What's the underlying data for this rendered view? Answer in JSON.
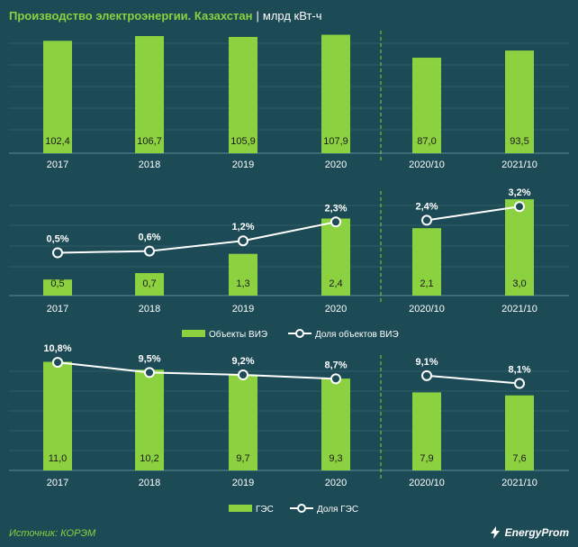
{
  "header": {
    "title": "Производство электроэнергии. Казахстан",
    "separator": "|",
    "unit": "млрд кВт-ч"
  },
  "footer": {
    "source": "Источник: КОРЭМ",
    "logo": "EnergyProm"
  },
  "colors": {
    "bar": "#8cd13f",
    "line": "#ffffff",
    "marker_fill": "#1c4a55",
    "grid": "#2e5c66",
    "divider": "#8cd13f"
  },
  "chart_data": [
    {
      "type": "bar",
      "categories": [
        "2017",
        "2018",
        "2019",
        "2020",
        "2020/10",
        "2021/10"
      ],
      "series": [
        {
          "values": [
            102.4,
            106.7,
            105.9,
            107.9,
            87.0,
            93.5
          ],
          "labels": [
            "102,4",
            "106,7",
            "105,9",
            "107,9",
            "87,0",
            "93,5"
          ]
        }
      ],
      "ylim": [
        0,
        110
      ],
      "grid": true
    },
    {
      "type": "bar",
      "categories": [
        "2017",
        "2018",
        "2019",
        "2020",
        "2020/10",
        "2021/10"
      ],
      "series": [
        {
          "name": "Объекты ВИЭ",
          "type": "bar",
          "values": [
            0.5,
            0.7,
            1.3,
            2.4,
            2.1,
            3.0
          ],
          "labels": [
            "0,5",
            "0,7",
            "1,3",
            "2,4",
            "2,1",
            "3,0"
          ]
        },
        {
          "name": "Доля объектов ВИЭ",
          "type": "line",
          "values": [
            0.5,
            0.6,
            1.2,
            2.3,
            2.4,
            3.2
          ],
          "labels": [
            "0,5%",
            "0,6%",
            "1,2%",
            "2,3%",
            "2,4%",
            "3,2%"
          ]
        }
      ],
      "ylim": [
        0,
        3.2
      ],
      "line_ylim": [
        -2.0,
        4.0
      ],
      "grid": true,
      "legend": "bottom"
    },
    {
      "type": "bar",
      "categories": [
        "2017",
        "2018",
        "2019",
        "2020",
        "2020/10",
        "2021/10"
      ],
      "series": [
        {
          "name": "ГЭС",
          "type": "bar",
          "values": [
            11.0,
            10.2,
            9.7,
            9.3,
            7.9,
            7.6
          ],
          "labels": [
            "11,0",
            "10,2",
            "9,7",
            "9,3",
            "7,9",
            "7,6"
          ]
        },
        {
          "name": "Доля ГЭС",
          "type": "line",
          "values": [
            10.8,
            9.5,
            9.2,
            8.7,
            9.1,
            8.1
          ],
          "labels": [
            "10,8%",
            "9,5%",
            "9,2%",
            "8,7%",
            "9,1%",
            "8,1%"
          ]
        }
      ],
      "ylim": [
        0,
        11.5
      ],
      "line_ylim": [
        -3.0,
        11.5
      ],
      "grid": true,
      "legend": "bottom"
    }
  ]
}
